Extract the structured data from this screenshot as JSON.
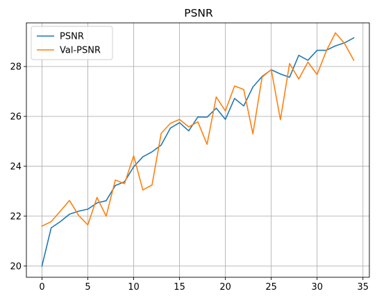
{
  "chart_data": {
    "type": "line",
    "title": "PSNR",
    "xlabel": "",
    "ylabel": "",
    "xlim": [
      -1.7,
      35.7
    ],
    "ylim": [
      19.55,
      29.75
    ],
    "x_ticks": [
      0,
      5,
      10,
      15,
      20,
      25,
      30,
      35
    ],
    "y_ticks": [
      20,
      22,
      24,
      26,
      28
    ],
    "grid": true,
    "legend_position": "top-left",
    "x": [
      0,
      1,
      2,
      3,
      4,
      5,
      6,
      7,
      8,
      9,
      10,
      11,
      12,
      13,
      14,
      15,
      16,
      17,
      18,
      19,
      20,
      21,
      22,
      23,
      24,
      25,
      26,
      27,
      28,
      29,
      30,
      31,
      32,
      33,
      34
    ],
    "series": [
      {
        "name": "PSNR",
        "color": "#1f77b4",
        "values": [
          20.0,
          21.53,
          21.78,
          22.08,
          22.2,
          22.28,
          22.53,
          22.62,
          23.23,
          23.38,
          23.98,
          24.38,
          24.58,
          24.85,
          25.53,
          25.75,
          25.42,
          25.98,
          25.97,
          26.33,
          25.88,
          26.72,
          26.42,
          27.18,
          27.6,
          27.87,
          27.7,
          27.57,
          28.45,
          28.25,
          28.65,
          28.65,
          28.83,
          28.95,
          29.15
        ]
      },
      {
        "name": "Val-PSNR",
        "color": "#ff7f0e",
        "values": [
          21.6,
          21.78,
          22.2,
          22.63,
          22.03,
          21.65,
          22.75,
          22.0,
          23.45,
          23.3,
          24.42,
          23.05,
          23.25,
          25.32,
          25.72,
          25.88,
          25.58,
          25.78,
          24.88,
          26.78,
          26.22,
          27.22,
          27.08,
          25.3,
          27.57,
          27.88,
          25.87,
          28.12,
          27.5,
          28.18,
          27.68,
          28.62,
          29.35,
          28.92,
          28.25
        ]
      }
    ]
  }
}
